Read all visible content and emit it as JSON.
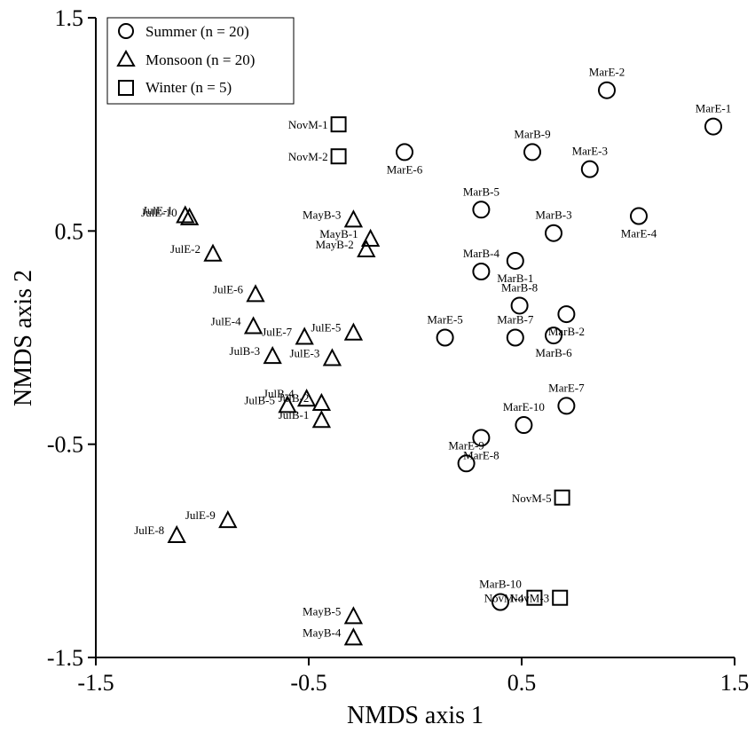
{
  "chart_data": {
    "type": "scatter",
    "xlabel": "NMDS axis 1",
    "ylabel": "NMDS axis 2",
    "xlim": [
      -1.5,
      1.5
    ],
    "ylim": [
      -1.5,
      1.5
    ],
    "xticks": [
      "-1.5",
      "-0.5",
      "0.5",
      "1.5"
    ],
    "yticks": [
      "-1.5",
      "-0.5",
      "0.5",
      "1.5"
    ],
    "grid": false,
    "legend_position": "top-left",
    "series": [
      {
        "name": "Summer (n = 20)",
        "marker": "circle",
        "points": [
          {
            "label": "MarE-2",
            "x": 0.9,
            "y": 1.16
          },
          {
            "label": "MarE-1",
            "x": 1.4,
            "y": 0.99
          },
          {
            "label": "MarE-6",
            "x": -0.05,
            "y": 0.87
          },
          {
            "label": "MarB-9",
            "x": 0.55,
            "y": 0.87
          },
          {
            "label": "MarE-3",
            "x": 0.82,
            "y": 0.79
          },
          {
            "label": "MarE-4",
            "x": 1.05,
            "y": 0.57
          },
          {
            "label": "MarB-5",
            "x": 0.31,
            "y": 0.6
          },
          {
            "label": "MarB-3",
            "x": 0.65,
            "y": 0.49
          },
          {
            "label": "MarB-1",
            "x": 0.47,
            "y": 0.36
          },
          {
            "label": "MarB-4",
            "x": 0.31,
            "y": 0.31
          },
          {
            "label": "MarB-8",
            "x": 0.49,
            "y": 0.15
          },
          {
            "label": "MarB-2",
            "x": 0.71,
            "y": 0.11
          },
          {
            "label": "MarE-5",
            "x": 0.14,
            "y": 0.0
          },
          {
            "label": "MarB-7",
            "x": 0.47,
            "y": 0.0
          },
          {
            "label": "MarB-6",
            "x": 0.65,
            "y": 0.01
          },
          {
            "label": "MarE-7",
            "x": 0.71,
            "y": -0.32
          },
          {
            "label": "MarE-10",
            "x": 0.51,
            "y": -0.41
          },
          {
            "label": "MarE-8",
            "x": 0.31,
            "y": -0.47
          },
          {
            "label": "MarE-9",
            "x": 0.24,
            "y": -0.59
          },
          {
            "label": "MarB-10",
            "x": 0.4,
            "y": -1.24
          }
        ]
      },
      {
        "name": "Monsoon (n = 20)",
        "marker": "triangle",
        "points": [
          {
            "label": "JulE-1",
            "x": -1.08,
            "y": 0.57
          },
          {
            "label": "JulE-10",
            "x": -1.06,
            "y": 0.56
          },
          {
            "label": "JulE-2",
            "x": -0.95,
            "y": 0.39
          },
          {
            "label": "MayB-3",
            "x": -0.29,
            "y": 0.55
          },
          {
            "label": "MayB-1",
            "x": -0.21,
            "y": 0.46
          },
          {
            "label": "MayB-2",
            "x": -0.23,
            "y": 0.41
          },
          {
            "label": "JulE-6",
            "x": -0.75,
            "y": 0.2
          },
          {
            "label": "JulE-4",
            "x": -0.76,
            "y": 0.05
          },
          {
            "label": "JulE-7",
            "x": -0.52,
            "y": 0.0
          },
          {
            "label": "JulE-5",
            "x": -0.29,
            "y": 0.02
          },
          {
            "label": "JulB-3",
            "x": -0.67,
            "y": -0.09
          },
          {
            "label": "JulE-3",
            "x": -0.39,
            "y": -0.1
          },
          {
            "label": "JulB-4",
            "x": -0.51,
            "y": -0.29
          },
          {
            "label": "JulB-5",
            "x": -0.6,
            "y": -0.32
          },
          {
            "label": "JulB-2",
            "x": -0.44,
            "y": -0.31
          },
          {
            "label": "JulB-1",
            "x": -0.44,
            "y": -0.39
          },
          {
            "label": "JulE-9",
            "x": -0.88,
            "y": -0.86
          },
          {
            "label": "JulE-8",
            "x": -1.12,
            "y": -0.93
          },
          {
            "label": "MayB-5",
            "x": -0.29,
            "y": -1.31
          },
          {
            "label": "MayB-4",
            "x": -0.29,
            "y": -1.41
          }
        ]
      },
      {
        "name": "Winter (n = 5)",
        "marker": "square",
        "points": [
          {
            "label": "NovM-1",
            "x": -0.36,
            "y": 1.0
          },
          {
            "label": "NovM-2",
            "x": -0.36,
            "y": 0.85
          },
          {
            "label": "NovM-5",
            "x": 0.69,
            "y": -0.75
          },
          {
            "label": "NovM-4",
            "x": 0.56,
            "y": -1.22
          },
          {
            "label": "NovM-3",
            "x": 0.68,
            "y": -1.22
          }
        ]
      }
    ]
  }
}
